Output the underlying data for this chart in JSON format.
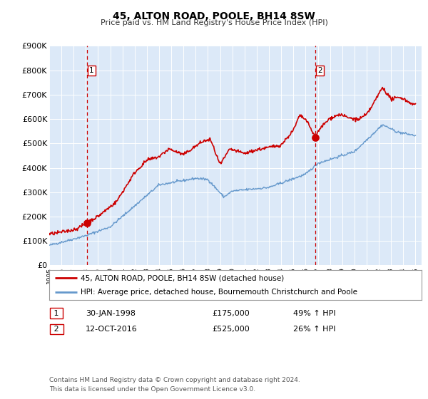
{
  "title": "45, ALTON ROAD, POOLE, BH14 8SW",
  "subtitle": "Price paid vs. HM Land Registry's House Price Index (HPI)",
  "legend_line1": "45, ALTON ROAD, POOLE, BH14 8SW (detached house)",
  "legend_line2": "HPI: Average price, detached house, Bournemouth Christchurch and Poole",
  "sale1_label": "1",
  "sale1_date": "30-JAN-1998",
  "sale1_price": "£175,000",
  "sale1_hpi": "49% ↑ HPI",
  "sale1_x": 1998.08,
  "sale1_y": 175000,
  "sale2_label": "2",
  "sale2_date": "12-OCT-2016",
  "sale2_price": "£525,000",
  "sale2_hpi": "26% ↑ HPI",
  "sale2_x": 2016.79,
  "sale2_y": 525000,
  "vline1_x": 1998.08,
  "vline2_x": 2016.79,
  "xmin": 1995.0,
  "xmax": 2025.5,
  "ymin": 0,
  "ymax": 900000,
  "yticks": [
    0,
    100000,
    200000,
    300000,
    400000,
    500000,
    600000,
    700000,
    800000,
    900000
  ],
  "ytick_labels": [
    "£0",
    "£100K",
    "£200K",
    "£300K",
    "£400K",
    "£500K",
    "£600K",
    "£700K",
    "£800K",
    "£900K"
  ],
  "plot_bg_color": "#dce9f8",
  "red_line_color": "#cc0000",
  "blue_line_color": "#6699cc",
  "vline_color": "#cc0000",
  "marker_color": "#cc0000",
  "grid_color": "#ffffff",
  "footnote_line1": "Contains HM Land Registry data © Crown copyright and database right 2024.",
  "footnote_line2": "This data is licensed under the Open Government Licence v3.0."
}
